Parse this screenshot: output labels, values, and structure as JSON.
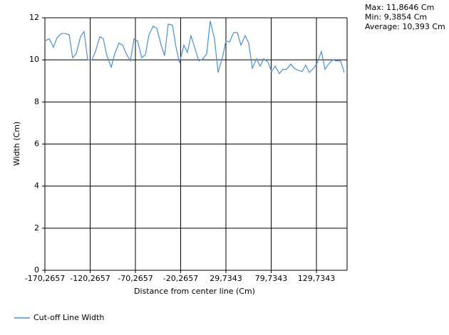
{
  "chart_data": {
    "type": "line",
    "x_label": "Distance from center line (Cm)",
    "y_label": "Width (Cm)",
    "annotations": [
      "Max: 11,8646 Cm",
      "Min: 9,3854 Cm",
      "Average: 10,393 Cm"
    ],
    "xlim": [
      -170.2657,
      163.6
    ],
    "ylim": [
      0,
      12
    ],
    "xticks": [
      {
        "value": -170.2657,
        "label": "-170,2657"
      },
      {
        "value": -120.2657,
        "label": "-120,2657"
      },
      {
        "value": -70.2657,
        "label": "-70,2657"
      },
      {
        "value": -20.2657,
        "label": "-20,2657"
      },
      {
        "value": 29.7343,
        "label": "29,7343"
      },
      {
        "value": 79.7343,
        "label": "79,7343"
      },
      {
        "value": 129.7343,
        "label": "129,7343"
      }
    ],
    "yticks": [
      0,
      2,
      4,
      6,
      8,
      10,
      12
    ],
    "grid": true,
    "legend": "bottom-left",
    "x": [
      -170.3,
      -165.5,
      -160.8,
      -156.9,
      -152.2,
      -148.2,
      -143.5,
      -139.6,
      -135.6,
      -131.0,
      -127.0,
      -123.0,
      -118.3,
      -114.4,
      -109.6,
      -105.7,
      -101.8,
      -97.0,
      -93.1,
      -88.4,
      -84.4,
      -80.5,
      -75.8,
      -71.8,
      -67.9,
      -63.2,
      -59.2,
      -55.3,
      -50.6,
      -46.6,
      -41.9,
      -38.0,
      -34.0,
      -29.3,
      -25.4,
      -21.5,
      -16.7,
      -12.8,
      -8.9,
      -4.1,
      -0.2,
      4.5,
      8.5,
      12.4,
      17.1,
      21.1,
      25.8,
      29.7,
      33.7,
      38.4,
      42.3,
      46.3,
      51.0,
      54.9,
      58.9,
      63.6,
      67.5,
      71.5,
      76.2,
      80.1,
      84.1,
      88.8,
      92.7,
      96.7,
      101.4,
      105.3,
      109.3,
      114.0,
      117.9,
      121.9,
      126.6,
      130.5,
      135.3,
      139.2,
      143.1,
      147.9,
      151.8,
      156.5,
      160.4
    ],
    "series": [
      {
        "name": "Cut-off Line Width",
        "color": "#4a8fd4",
        "values": [
          10.9,
          11.0,
          10.6,
          11.05,
          11.25,
          11.25,
          11.2,
          10.1,
          10.3,
          11.1,
          11.35,
          10.0,
          10.0,
          10.4,
          11.1,
          11.0,
          10.2,
          9.65,
          10.3,
          10.8,
          10.7,
          10.3,
          9.95,
          11.0,
          10.9,
          10.1,
          10.25,
          11.2,
          11.6,
          11.5,
          10.7,
          10.2,
          11.7,
          11.65,
          10.6,
          9.85,
          10.7,
          10.35,
          11.15,
          10.5,
          9.95,
          10.05,
          10.3,
          11.85,
          11.0,
          9.4,
          10.1,
          10.9,
          10.85,
          11.3,
          11.3,
          10.7,
          11.15,
          10.8,
          9.6,
          10.05,
          9.7,
          10.05,
          9.9,
          9.45,
          9.7,
          9.35,
          9.55,
          9.55,
          9.8,
          9.6,
          9.5,
          9.45,
          9.75,
          9.4,
          9.6,
          9.85,
          10.4,
          9.55,
          9.8,
          10.0,
          9.95,
          9.95,
          9.4
        ]
      }
    ]
  }
}
